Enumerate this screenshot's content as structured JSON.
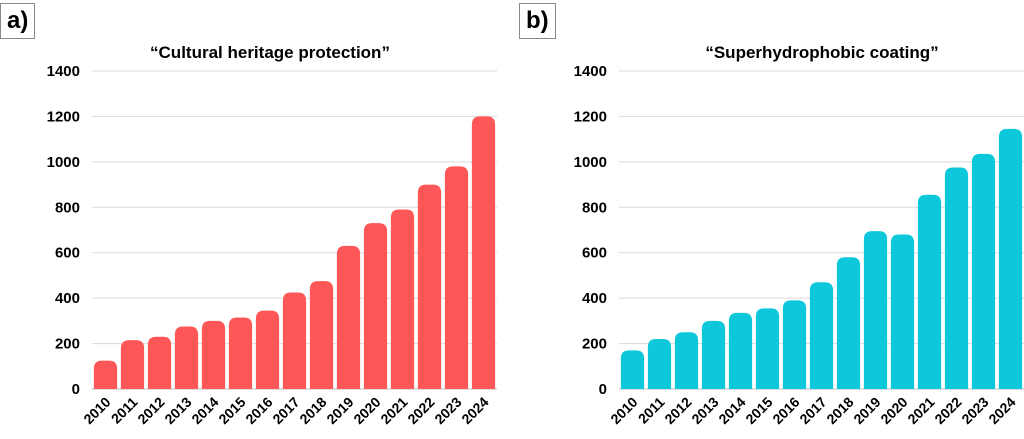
{
  "chart_data": [
    {
      "panel_label": "a)",
      "type": "bar",
      "title": "“Cultural heritage protection”",
      "xlabel": "",
      "ylabel": "",
      "ylim": [
        0,
        1400
      ],
      "yticks": [
        "0",
        "200",
        "400",
        "600",
        "800",
        "1000",
        "1200",
        "1400"
      ],
      "categories": [
        "2010",
        "2011",
        "2012",
        "2013",
        "2014",
        "2015",
        "2016",
        "2017",
        "2018",
        "2019",
        "2020",
        "2021",
        "2022",
        "2023",
        "2024"
      ],
      "values": [
        125,
        215,
        230,
        275,
        300,
        315,
        345,
        425,
        475,
        630,
        730,
        790,
        900,
        980,
        1200
      ],
      "color": "#ff5757",
      "grid": true
    },
    {
      "panel_label": "b)",
      "type": "bar",
      "title": "“Superhydrophobic coating”",
      "xlabel": "",
      "ylabel": "",
      "ylim": [
        0,
        1400
      ],
      "yticks": [
        "0",
        "200",
        "400",
        "600",
        "800",
        "1000",
        "1200",
        "1400"
      ],
      "categories": [
        "2010",
        "2011",
        "2012",
        "2013",
        "2014",
        "2015",
        "2016",
        "2017",
        "2018",
        "2019",
        "2020",
        "2021",
        "2022",
        "2023",
        "2024"
      ],
      "values": [
        170,
        220,
        250,
        300,
        335,
        355,
        390,
        470,
        580,
        695,
        680,
        855,
        975,
        1035,
        1145
      ],
      "color": "#0dc8da",
      "grid": true
    }
  ]
}
